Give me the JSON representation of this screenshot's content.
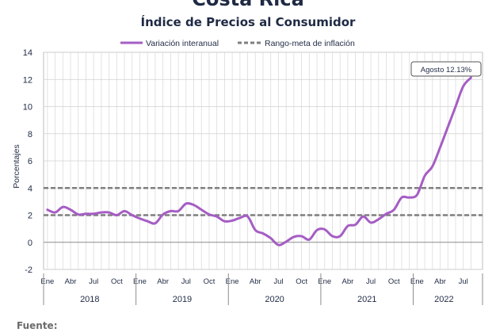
{
  "header": {
    "country": "Costa Rica",
    "title": "Índice de Precios al Consumidor"
  },
  "footer": {
    "source_label": "Fuente:"
  },
  "chart_data": {
    "type": "line",
    "title": "Índice de Precios al Consumidor",
    "ylabel": "Porcentajes",
    "xlabel": "",
    "ylim": [
      -2,
      14
    ],
    "yticks": [
      -2,
      0,
      2,
      4,
      6,
      8,
      10,
      12,
      14
    ],
    "grid": true,
    "legend_position": "top",
    "month_tick_labels": [
      "Ene",
      "Abr",
      "Jul",
      "Oct"
    ],
    "years": [
      "2018",
      "2019",
      "2020",
      "2021",
      "2022"
    ],
    "x": [
      "2018-01",
      "2018-02",
      "2018-03",
      "2018-04",
      "2018-05",
      "2018-06",
      "2018-07",
      "2018-08",
      "2018-09",
      "2018-10",
      "2018-11",
      "2018-12",
      "2019-01",
      "2019-02",
      "2019-03",
      "2019-04",
      "2019-05",
      "2019-06",
      "2019-07",
      "2019-08",
      "2019-09",
      "2019-10",
      "2019-11",
      "2019-12",
      "2020-01",
      "2020-02",
      "2020-03",
      "2020-04",
      "2020-05",
      "2020-06",
      "2020-07",
      "2020-08",
      "2020-09",
      "2020-10",
      "2020-11",
      "2020-12",
      "2021-01",
      "2021-02",
      "2021-03",
      "2021-04",
      "2021-05",
      "2021-06",
      "2021-07",
      "2021-08",
      "2021-09",
      "2021-10",
      "2021-11",
      "2021-12",
      "2022-01",
      "2022-02",
      "2022-03",
      "2022-04",
      "2022-05",
      "2022-06",
      "2022-07",
      "2022-08"
    ],
    "series": [
      {
        "name": "Variación interanual",
        "color": "#a55dc4",
        "style": "solid",
        "values": [
          2.4,
          2.2,
          2.6,
          2.4,
          2.05,
          2.1,
          2.1,
          2.2,
          2.2,
          2.0,
          2.3,
          2.0,
          1.75,
          1.55,
          1.4,
          2.05,
          2.3,
          2.3,
          2.85,
          2.75,
          2.4,
          2.05,
          1.9,
          1.55,
          1.6,
          1.8,
          1.9,
          0.9,
          0.65,
          0.3,
          -0.2,
          0.05,
          0.4,
          0.45,
          0.2,
          0.9,
          0.95,
          0.45,
          0.45,
          1.2,
          1.3,
          1.9,
          1.45,
          1.7,
          2.1,
          2.4,
          3.3,
          3.3,
          3.5,
          4.9,
          5.6,
          7.0,
          8.5,
          10.0,
          11.5,
          12.13
        ]
      },
      {
        "name": "Rango-meta de inflación",
        "color": "#7f7f7f",
        "style": "dashed",
        "band": [
          2,
          4
        ]
      }
    ],
    "annotation": {
      "text": "Agosto 12.13%",
      "x": "2022-08",
      "y": 12.13
    }
  },
  "colors": {
    "text": "#1f2a44",
    "grid": "#d0d0d0",
    "axis": "#7f7f7f"
  }
}
